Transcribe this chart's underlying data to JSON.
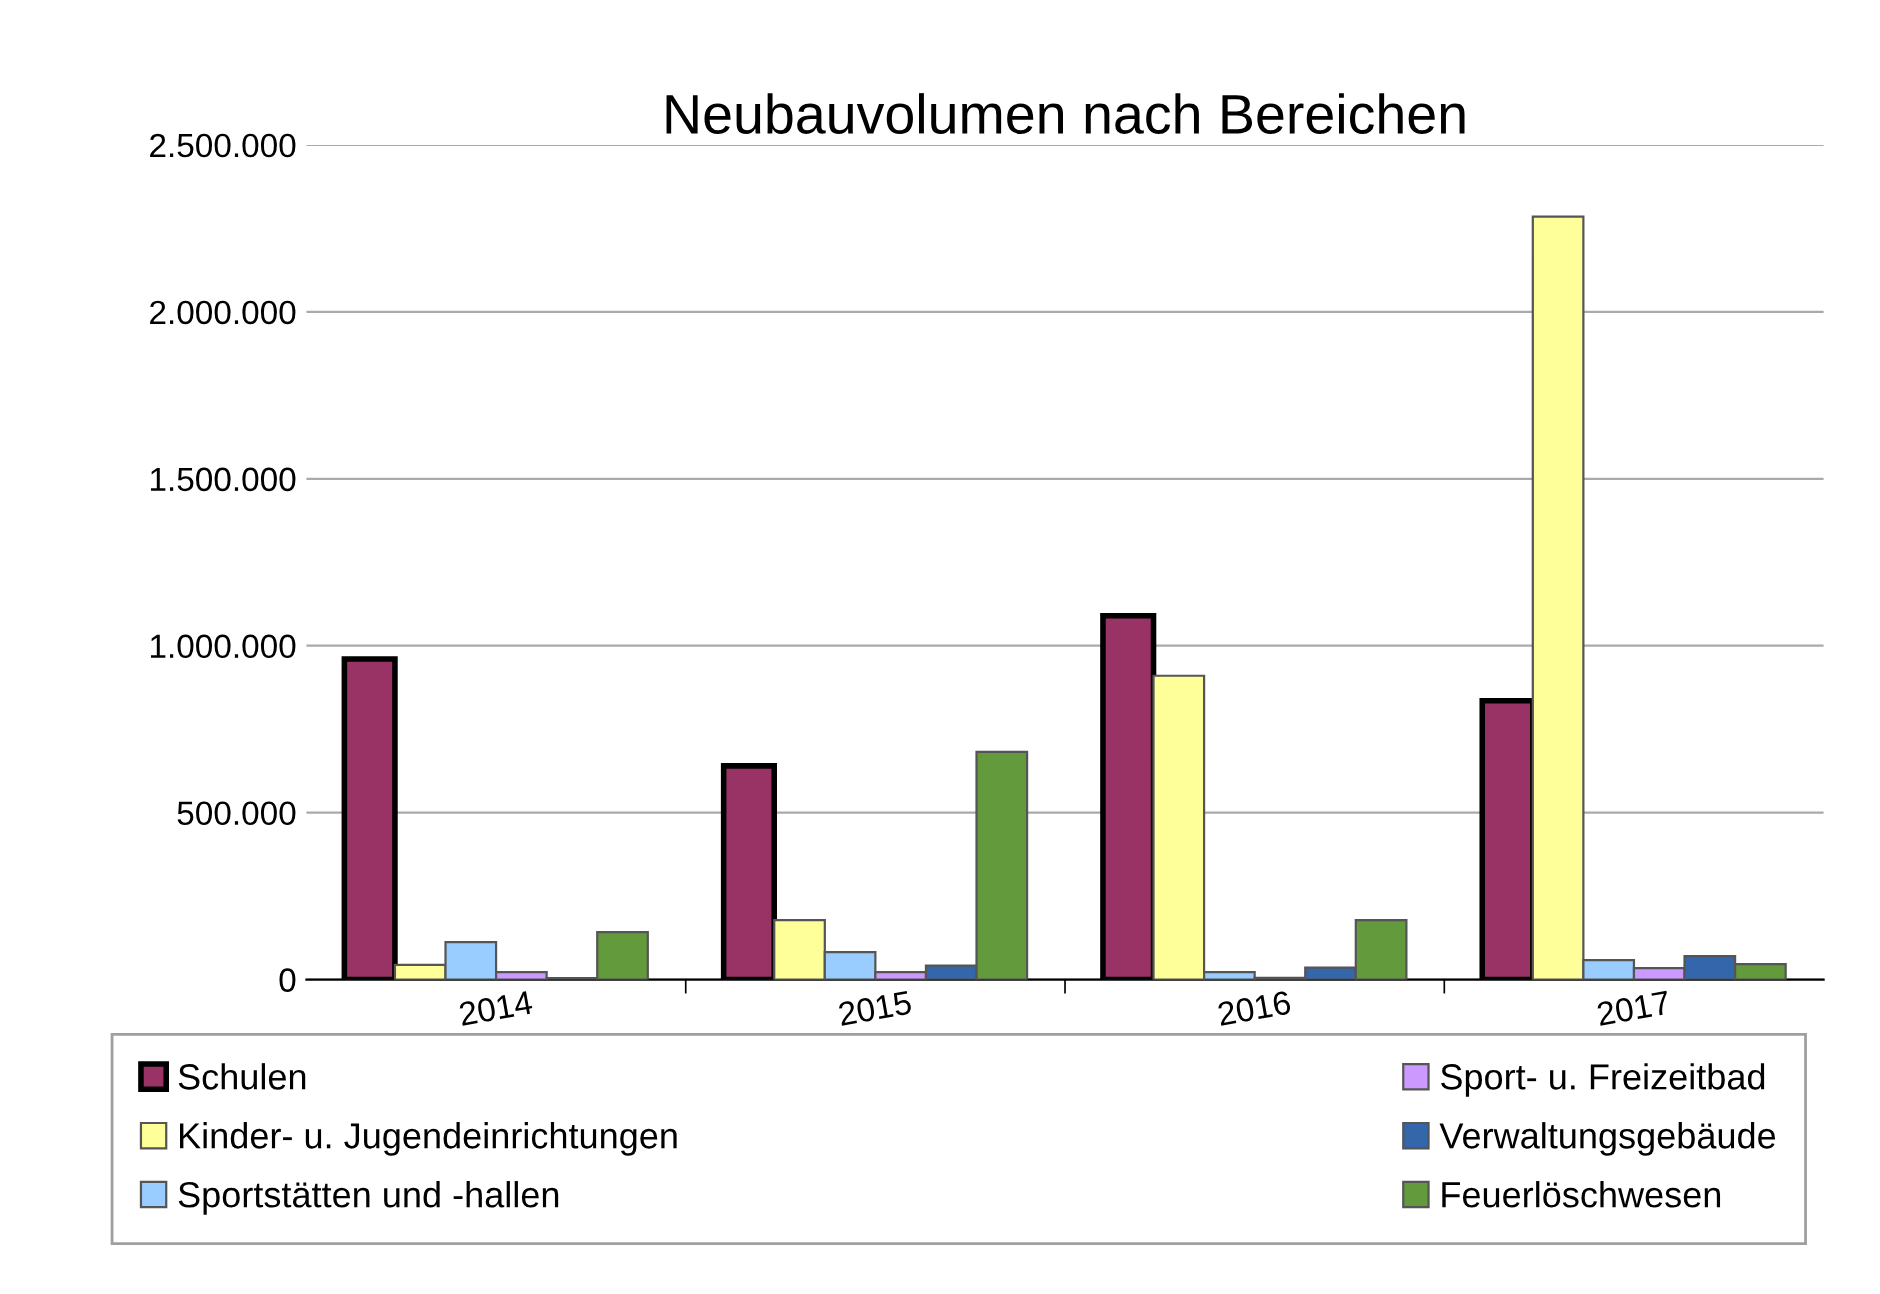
{
  "chart_data": {
    "type": "bar",
    "title": "Neubauvolumen nach Bereichen",
    "categories": [
      "2014",
      "2015",
      "2016",
      "2017"
    ],
    "series": [
      {
        "name": "Schulen",
        "color": "#993366",
        "values": [
          960000,
          640000,
          1090000,
          835000
        ]
      },
      {
        "name": "Kinder- u. Jugendeinrichtungen",
        "color": "#ffff99",
        "values": [
          44000,
          178000,
          910000,
          2285000
        ]
      },
      {
        "name": "Sportstätten und -hallen",
        "color": "#99ccff",
        "values": [
          112000,
          82000,
          22000,
          58000
        ]
      },
      {
        "name": "Sport- u. Freizeitbad",
        "color": "#cc99ff",
        "values": [
          22000,
          22000,
          5000,
          34000
        ]
      },
      {
        "name": "Verwaltungsgebäude",
        "color": "#3366aa",
        "values": [
          4000,
          42000,
          36000,
          70000
        ]
      },
      {
        "name": "Feuerlöschwesen",
        "color": "#639a3c",
        "values": [
          142000,
          682000,
          178000,
          46000
        ]
      }
    ],
    "ylim": [
      0,
      2500000
    ],
    "yticks": [
      0,
      {
        "value": 500000,
        "label": "500.000"
      },
      {
        "value": 1000000,
        "label": "1.000.000"
      },
      {
        "value": 1500000,
        "label": "1.500.000"
      },
      {
        "value": 2000000,
        "label": "2.000.000"
      },
      {
        "value": 2500000,
        "label": "2.500.000"
      }
    ],
    "grid": "y",
    "legend": "bottom"
  }
}
